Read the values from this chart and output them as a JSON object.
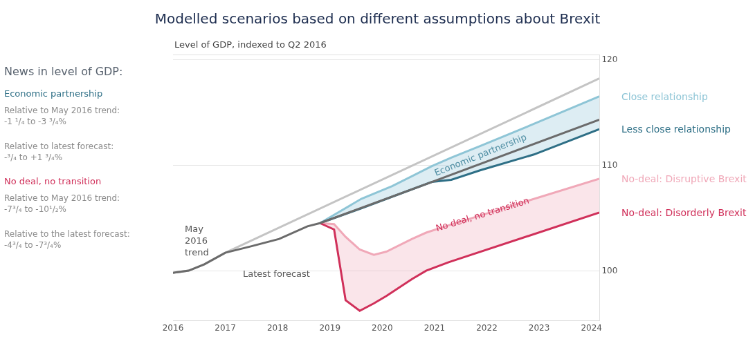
{
  "chart_data": {
    "type": "line",
    "title": "Modelled scenarios based on different assumptions about Brexit",
    "subtitle": "Level of GDP, indexed to Q2 2016",
    "series": [
      {
        "color": "#c4c4c4",
        "x": [
          2016,
          2016.3,
          2016.6,
          2017,
          2024.15
        ],
        "values": [
          99.8,
          100.0,
          100.6,
          101.7,
          118.2
        ]
      },
      {
        "name": "Close relationship",
        "color": "#8ec5d6",
        "x": [
          2018.81,
          2019.6,
          2020.19,
          2020.95,
          2021.32,
          2021.87,
          2022.9,
          2024.15
        ],
        "values": [
          104.5,
          106.8,
          108.0,
          109.9,
          110.7,
          111.8,
          113.9,
          116.5
        ],
        "lower": [
          104.5,
          105.9,
          107.0,
          108.4,
          108.6,
          109.5,
          111.0,
          113.4
        ],
        "upper": [
          104.5,
          106.8,
          108.0,
          109.9,
          110.7,
          111.8,
          113.9,
          116.5
        ]
      },
      {
        "name": "Less close relationship",
        "color": "#2e6f86",
        "x": [
          2018.81,
          2019.6,
          2020.19,
          2020.95,
          2021.32,
          2021.87,
          2022.9,
          2024.15
        ],
        "values": [
          104.5,
          105.9,
          107.0,
          108.4,
          108.6,
          109.5,
          111.0,
          113.4
        ]
      },
      {
        "name": "No-deal: Disruptive Brexit",
        "color": "#f0a8b8",
        "x": [
          2018.81,
          2019.08,
          2019.3,
          2019.57,
          2019.84,
          2020.08,
          2020.57,
          2020.84,
          2021.27,
          2024.15
        ],
        "values": [
          104.5,
          104.4,
          103.2,
          102.0,
          101.5,
          101.8,
          103.0,
          103.6,
          104.3,
          108.7
        ],
        "lower": [
          104.5,
          103.9,
          97.2,
          96.2,
          96.9,
          97.6,
          99.2,
          100.0,
          100.8,
          105.5
        ],
        "upper": [
          104.5,
          104.4,
          103.2,
          102.0,
          101.5,
          101.8,
          103.0,
          103.6,
          104.3,
          108.7
        ]
      },
      {
        "name": "No-deal: Disorderly Brexit",
        "color": "#d0305a",
        "x": [
          2018.81,
          2019.08,
          2019.3,
          2019.57,
          2019.84,
          2020.08,
          2020.57,
          2020.84,
          2021.27,
          2024.15
        ],
        "values": [
          104.5,
          103.9,
          97.2,
          96.2,
          96.9,
          97.6,
          99.2,
          100.0,
          100.8,
          105.5
        ]
      },
      {
        "color": "#6b6b6b",
        "x": [
          2016,
          2016.3,
          2016.6,
          2017,
          2017.49,
          2018.03,
          2018.57,
          2018.81,
          2020.95,
          2024.15
        ],
        "values": [
          99.8,
          100.0,
          100.6,
          101.7,
          102.3,
          103.0,
          104.2,
          104.5,
          108.4,
          114.3
        ]
      }
    ],
    "xlim": [
      2016,
      2024.15
    ],
    "xticks": [
      2016,
      2017,
      2018,
      2019,
      2020,
      2021,
      2022,
      2023,
      2024
    ],
    "ylim": [
      95.3,
      120.4
    ],
    "yticks": [
      100,
      110,
      120
    ],
    "grid": "y",
    "legend": false,
    "annotations": [
      "News in level of GDP:",
      "Economic partnership",
      "Relative to May 2016 trend:\n-1 ¹/₄ to -3 ³/₄%",
      "Relative to latest forecast:\n-³/₄ to +1 ³/₄%",
      "No deal, no transition",
      "Relative to May 2016 trend:\n-7³/₄ to -10¹/₂%",
      "Relative to the latest forecast:\n-4³/₄ to -7³/₄%",
      "May\n2016\ntrend",
      "Latest forecast",
      "Economic partnership",
      "No deal, no transition"
    ]
  }
}
